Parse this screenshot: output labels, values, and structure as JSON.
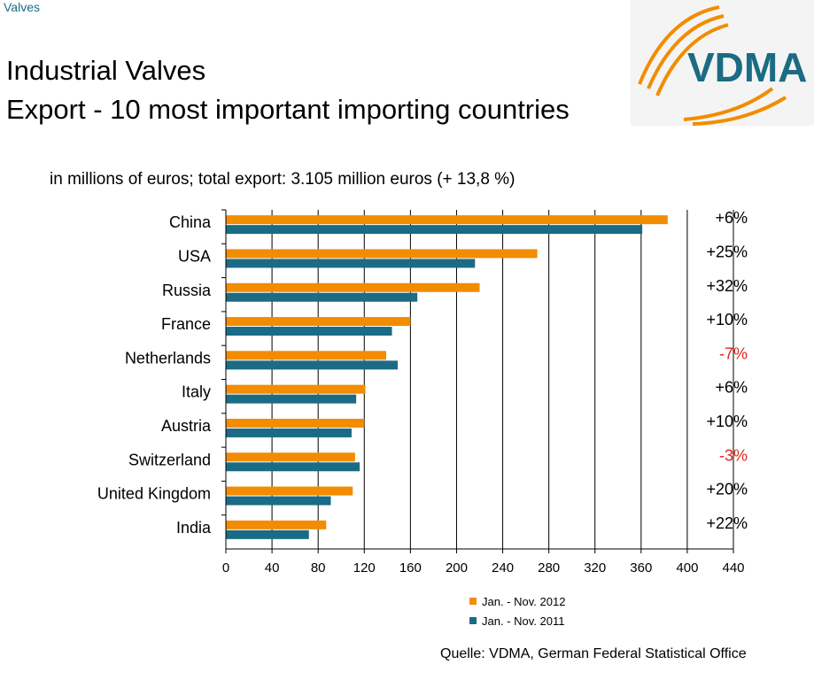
{
  "header": {
    "breadcrumb": "Valves",
    "title_line1": "Industrial Valves",
    "title_line2": "Export - 10 most important importing countries",
    "logo_text": "VDMA"
  },
  "chart_data": {
    "type": "bar",
    "orientation": "horizontal",
    "subtitle": "in millions of euros; total export: 3.105 million euros (+ 13,8 %)",
    "categories": [
      "China",
      "USA",
      "Russia",
      "France",
      "Netherlands",
      "Italy",
      "Austria",
      "Switzerland",
      "United Kingdom",
      "India"
    ],
    "series": [
      {
        "name": "Jan. - Nov. 2012",
        "color": "#f28c00",
        "values": [
          383,
          270,
          220,
          160,
          139,
          121,
          120,
          112,
          110,
          87
        ]
      },
      {
        "name": "Jan. - Nov. 2011",
        "color": "#1b6b84",
        "values": [
          361,
          216,
          166,
          144,
          149,
          113,
          109,
          116,
          91,
          72
        ]
      }
    ],
    "changes": [
      "+6%",
      "+25%",
      "+32%",
      "+10%",
      "-7%",
      "+6%",
      "+10%",
      "-3%",
      "+20%",
      "+22%"
    ],
    "negative_color": "#e0261c",
    "xlim": [
      0,
      440
    ],
    "xticks": [
      0,
      40,
      80,
      120,
      160,
      200,
      240,
      280,
      320,
      360,
      400,
      440
    ],
    "grid": true,
    "legend_position": "bottom"
  },
  "footer": {
    "source": "Quelle: VDMA, German Federal Statistical Office"
  }
}
